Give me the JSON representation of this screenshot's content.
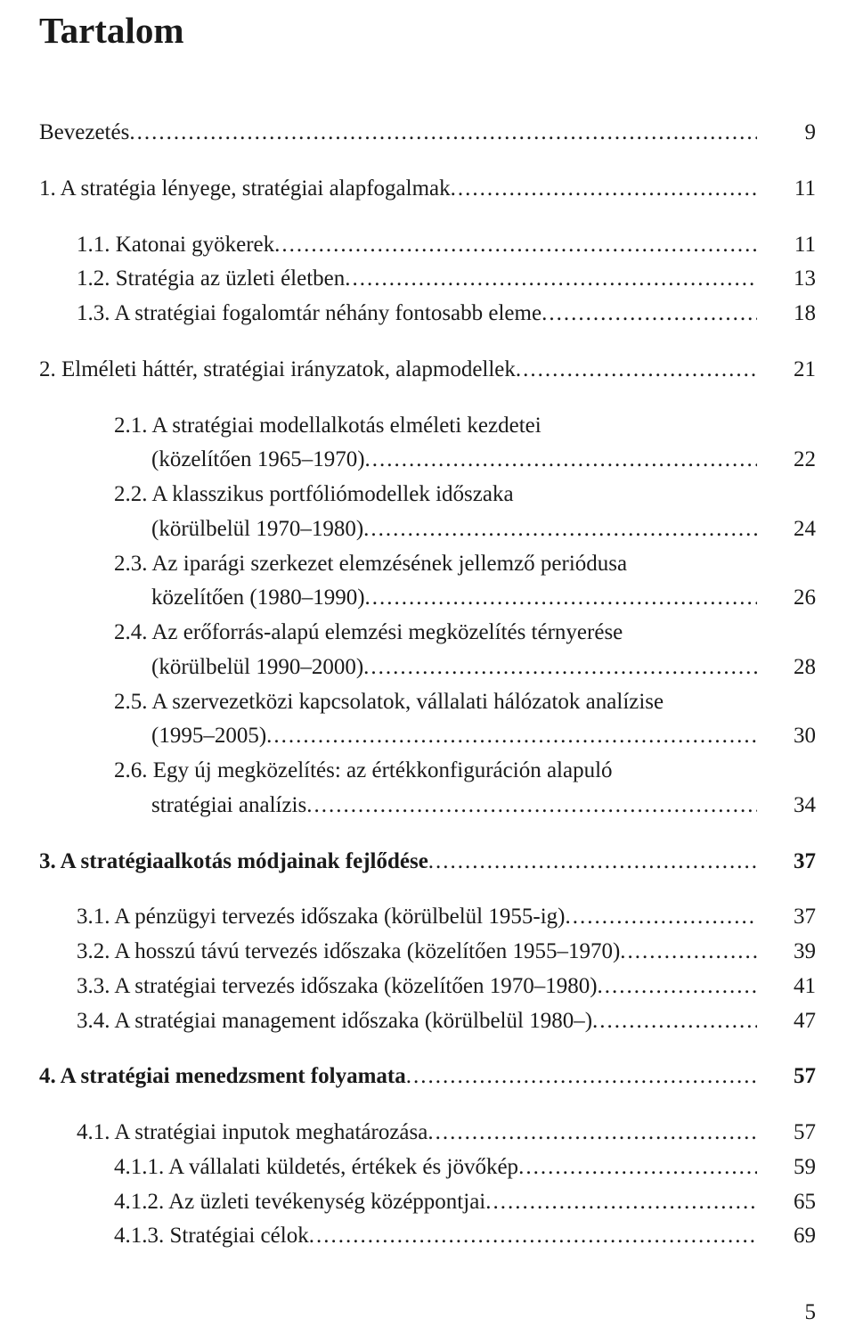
{
  "title": "Tartalom",
  "footer_page": "5",
  "colors": {
    "text": "#1a1a1a",
    "background": "#ffffff"
  },
  "font": {
    "family": "Times New Roman, serif",
    "title_size_pt": 30,
    "body_size_pt": 18
  },
  "entries": [
    {
      "label": "Bevezetés",
      "page": "9",
      "indent": 0,
      "bold": false,
      "gap_after": true
    },
    {
      "label": "1. A stratégia lényege, stratégiai alapfogalmak",
      "page": "11",
      "indent": 0,
      "bold": false,
      "gap_after": true
    },
    {
      "label": "1.1. Katonai gyökerek",
      "page": "11",
      "indent": 1,
      "bold": false
    },
    {
      "label": "1.2. Stratégia az üzleti életben",
      "page": "13",
      "indent": 1,
      "bold": false
    },
    {
      "label": "1.3. A stratégiai fogalomtár néhány fontosabb eleme",
      "page": "18",
      "indent": 1,
      "bold": false,
      "gap_after": true
    },
    {
      "label": "2. Elméleti háttér, stratégiai irányzatok, alapmodellek",
      "page": "21",
      "indent": 0,
      "bold": false,
      "gap_after": true
    },
    {
      "label_lines": [
        "2.1. A stratégiai modellalkotás elméleti kezdetei",
        "(közelítően 1965–1970)"
      ],
      "page": "22",
      "indent": 1,
      "bold": false
    },
    {
      "label_lines": [
        "2.2. A klasszikus portfóliómodellek időszaka",
        "(körülbelül 1970–1980)"
      ],
      "page": "24",
      "indent": 1,
      "bold": false
    },
    {
      "label_lines": [
        "2.3. Az iparági szerkezet elemzésének jellemző periódusa",
        "közelítően (1980–1990)"
      ],
      "page": "26",
      "indent": 1,
      "bold": false
    },
    {
      "label_lines": [
        "2.4. Az erőforrás-alapú elemzési megközelítés térnyerése",
        "(körülbelül 1990–2000)"
      ],
      "page": "28",
      "indent": 1,
      "bold": false
    },
    {
      "label_lines": [
        "2.5. A szervezetközi kapcsolatok, vállalati hálózatok analízise",
        "(1995–2005)"
      ],
      "page": "30",
      "indent": 1,
      "bold": false
    },
    {
      "label_lines": [
        "2.6. Egy új megközelítés: az értékkonfiguráción alapuló",
        "stratégiai analízis"
      ],
      "page": "34",
      "indent": 1,
      "bold": false,
      "gap_after": true
    },
    {
      "label": "3. A stratégiaalkotás módjainak fejlődése",
      "page": "37",
      "indent": 0,
      "bold": true,
      "gap_after": true
    },
    {
      "label": "3.1. A pénzügyi tervezés időszaka (körülbelül 1955-ig)",
      "page": "37",
      "indent": 1,
      "bold": false
    },
    {
      "label": "3.2. A hosszú távú tervezés időszaka (közelítően 1955–1970)",
      "page": "39",
      "indent": 1,
      "bold": false
    },
    {
      "label": "3.3. A stratégiai tervezés időszaka (közelítően 1970–1980)",
      "page": "41",
      "indent": 1,
      "bold": false
    },
    {
      "label": "3.4. A stratégiai management időszaka (körülbelül 1980–)",
      "page": "47",
      "indent": 1,
      "bold": false,
      "gap_after": true
    },
    {
      "label": "4. A stratégiai menedzsment folyamata",
      "page": "57",
      "indent": 0,
      "bold": true,
      "gap_after": true
    },
    {
      "label": "4.1. A stratégiai inputok meghatározása",
      "page": "57",
      "indent": 1,
      "bold": false
    },
    {
      "label": "4.1.1. A vállalati küldetés, értékek és jövőkép",
      "page": "59",
      "indent": 2,
      "bold": false
    },
    {
      "label": "4.1.2. Az üzleti tevékenység középpontjai",
      "page": "65",
      "indent": 2,
      "bold": false
    },
    {
      "label": "4.1.3. Stratégiai célok",
      "page": "69",
      "indent": 2,
      "bold": false
    }
  ]
}
